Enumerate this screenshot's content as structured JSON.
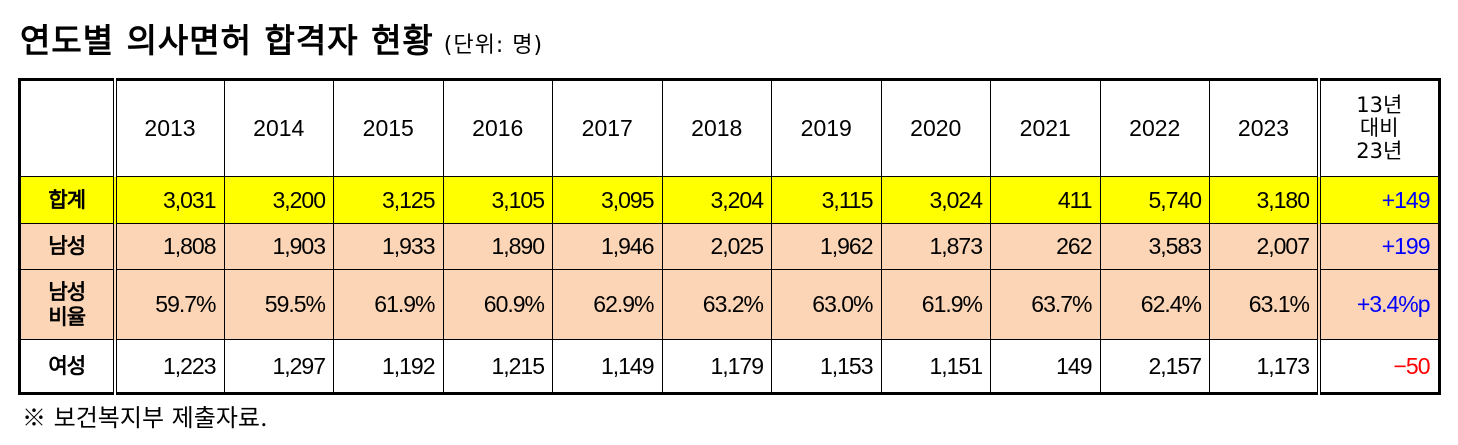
{
  "header": {
    "title": "연도별 의사면허 합격자 현황",
    "unit": "(단위: 명)"
  },
  "table": {
    "columns": [
      "2013",
      "2014",
      "2015",
      "2016",
      "2017",
      "2018",
      "2019",
      "2020",
      "2021",
      "2022",
      "2023"
    ],
    "change_header": [
      "13년",
      "대비",
      "23년"
    ],
    "rows": [
      {
        "label": [
          "합계"
        ],
        "values": [
          "3,031",
          "3,200",
          "3,125",
          "3,105",
          "3,095",
          "3,204",
          "3,115",
          "3,024",
          "411",
          "5,740",
          "3,180"
        ],
        "change": "+149"
      },
      {
        "label": [
          "남성"
        ],
        "values": [
          "1,808",
          "1,903",
          "1,933",
          "1,890",
          "1,946",
          "2,025",
          "1,962",
          "1,873",
          "262",
          "3,583",
          "2,007"
        ],
        "change": "+199"
      },
      {
        "label": [
          "남성",
          "비율"
        ],
        "values": [
          "59.7%",
          "59.5%",
          "61.9%",
          "60.9%",
          "62.9%",
          "63.2%",
          "63.0%",
          "61.9%",
          "63.7%",
          "62.4%",
          "63.1%"
        ],
        "change": "+3.4%p"
      },
      {
        "label": [
          "여성"
        ],
        "values": [
          "1,223",
          "1,297",
          "1,192",
          "1,215",
          "1,149",
          "1,179",
          "1,153",
          "1,151",
          "149",
          "2,157",
          "1,173"
        ],
        "change": "−50"
      }
    ]
  },
  "footer": {
    "note": "※ 보건복지부 제출자료."
  }
}
